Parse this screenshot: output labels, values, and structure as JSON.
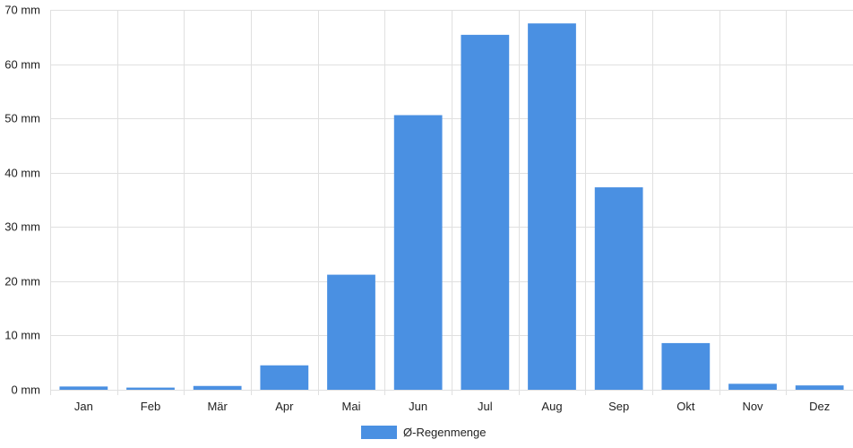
{
  "colors": {
    "bar": "#4a90e2",
    "grid": "#e0e0e0",
    "text": "#222222"
  },
  "chart_data": {
    "type": "bar",
    "title": "",
    "xlabel": "",
    "ylabel": "",
    "unit": "mm",
    "categories": [
      "Jan",
      "Feb",
      "Mär",
      "Apr",
      "Mai",
      "Jun",
      "Jul",
      "Aug",
      "Sep",
      "Okt",
      "Nov",
      "Dez"
    ],
    "series": [
      {
        "name": "Ø-Regenmenge",
        "values": [
          0.6,
          0.4,
          0.7,
          4.5,
          21.2,
          50.6,
          65.4,
          67.5,
          37.3,
          8.6,
          1.1,
          0.8
        ]
      }
    ],
    "ylim": [
      0,
      70
    ],
    "yticks": [
      0,
      10,
      20,
      30,
      40,
      50,
      60,
      70
    ],
    "ytick_labels": [
      "0 mm",
      "10 mm",
      "20 mm",
      "30 mm",
      "40 mm",
      "50 mm",
      "60 mm",
      "70 mm"
    ],
    "grid": true,
    "legend_position": "bottom-center"
  }
}
